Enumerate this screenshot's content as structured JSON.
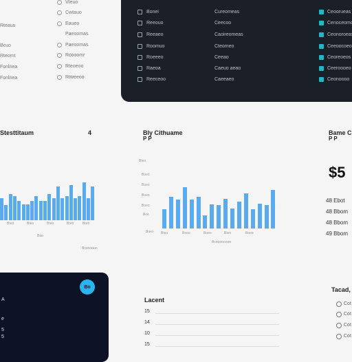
{
  "left_list": {
    "labels_col1": [
      "Rteaus",
      "Bcuo",
      "Rteomt",
      "Fonlnea"
    ],
    "labels_col2": [
      "Vteuo",
      "Cwtauo",
      "Eaueo",
      "Paeoomas",
      "Rcooomr",
      "Rteoeoo",
      "Rtweeoo"
    ]
  },
  "data_table": {
    "rows": [
      {
        "c1": "Bonei",
        "c2": "Cureomeas"
      },
      {
        "c1": "Reeouo",
        "c2": "Ceecoo"
      },
      {
        "c1": "Reeaeo",
        "c2": "Caoireomeas"
      },
      {
        "c1": "Roomuo",
        "c2": "Cteomeo"
      },
      {
        "c1": "Roeeeo",
        "c2": "Ceeao"
      },
      {
        "c1": "Raeoa",
        "c2": "Caeuo aeao"
      },
      {
        "c1": "Reeceoo",
        "c2": "Caeeaeo"
      }
    ],
    "right_labels": [
      "Ceoorueas",
      "Cenoceomo",
      "Ceonoroeas",
      "Ceeoocoeo",
      "Ceoreoeos",
      "Ceeroooeo",
      "Ceonoooo"
    ]
  },
  "widgets": {
    "left_title": "Stesttitaum",
    "left_title_badge": "4",
    "mid_title": "Bly Cithuame",
    "mid_subtitle": "P P",
    "right_title": "Bame Cl",
    "right_subtitle": "P P",
    "big_number": "$5",
    "stats": [
      "48 Ebot",
      "48 Bbom",
      "49 Bbom"
    ],
    "left_x_ticks": [
      "Bteo",
      "Bteo",
      "Bteo",
      "Bteo",
      "Bteo"
    ],
    "left_xlabel": "Bao",
    "left_footer": "Bcoooooo",
    "mid_y_ticks": [
      "Bteo",
      "Boeo",
      "Boeo",
      "Boeo",
      "Boeo",
      "Boe"
    ],
    "mid_x_ticks": [
      "Boeo",
      "Bteo",
      "Boeo",
      "Boeo",
      "Bteo",
      "Boeo"
    ],
    "mid_xlabel": "Bcoooooooo"
  },
  "dark_card": {
    "badge": "Bo",
    "lines": [
      "A",
      "e",
      "5",
      "5"
    ]
  },
  "legend_card": {
    "title": "Lacent",
    "rows": [
      "15",
      "14",
      "10",
      "15"
    ]
  },
  "bottom_right": {
    "title": "Tacad,",
    "items": [
      "Cot",
      "Cot",
      "Cot",
      "Cot"
    ]
  },
  "chart_data": [
    {
      "type": "bar",
      "title": "Stesttitaum",
      "values": [
        55,
        38,
        65,
        60,
        48,
        40,
        40,
        48,
        60,
        48,
        48,
        65,
        55,
        85,
        55,
        60,
        88,
        55,
        60,
        95,
        55,
        85
      ]
    },
    {
      "type": "bar",
      "title": "Bly Cithuame",
      "values": [
        40,
        65,
        60,
        85,
        60,
        65,
        27,
        50,
        48,
        62,
        42,
        55,
        73,
        40,
        52,
        48,
        80
      ]
    }
  ],
  "colors": {
    "accent": "#5aaaf0",
    "dark_panel": "#1b1f27",
    "teal": "#1fb8c9",
    "navy": "#0d1226"
  }
}
